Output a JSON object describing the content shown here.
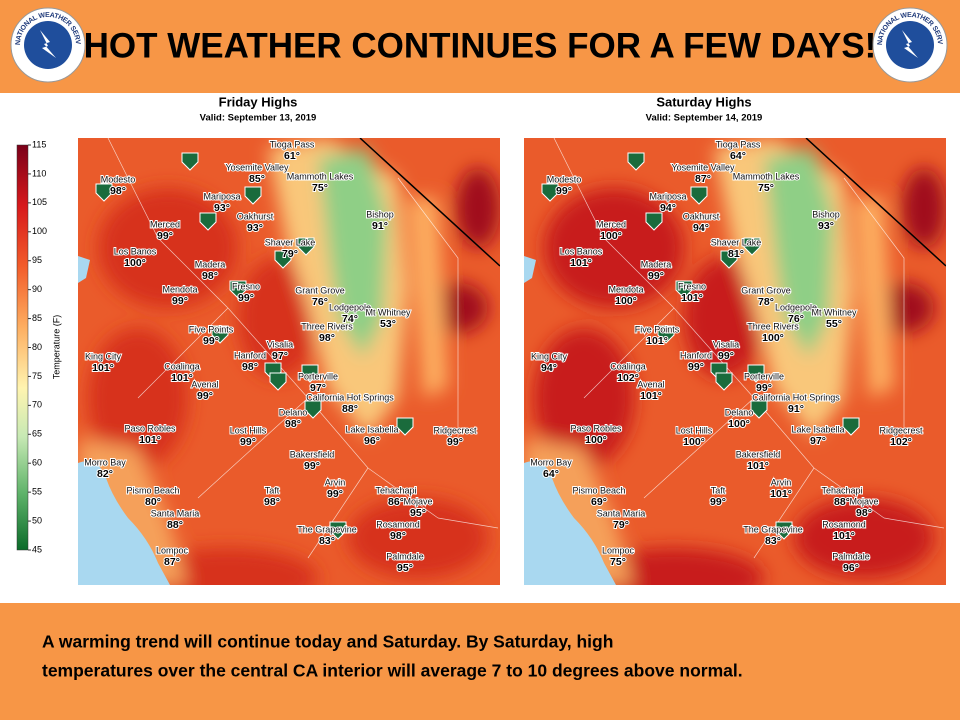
{
  "header": {
    "title": "HOT WEATHER CONTINUES FOR A FEW DAYS!",
    "logo_text": "NATIONAL WEATHER SERVICE"
  },
  "colorbar": {
    "label": "Temperature (F)",
    "ticks": [
      "115",
      "110",
      "105",
      "100",
      "95",
      "90",
      "85",
      "80",
      "75",
      "70",
      "65",
      "60",
      "55",
      "50",
      "45"
    ]
  },
  "maps": [
    {
      "title": "Friday Highs",
      "valid": "Valid: September 13, 2019",
      "cities": [
        {
          "name": "Tioga Pass",
          "temp": "61°"
        },
        {
          "name": "Modesto",
          "temp": "98°"
        },
        {
          "name": "Yosemite Valley",
          "temp": "85°"
        },
        {
          "name": "Mammoth Lakes",
          "temp": "75°"
        },
        {
          "name": "Mariposa",
          "temp": "93°"
        },
        {
          "name": "Merced",
          "temp": "99°"
        },
        {
          "name": "Oakhurst",
          "temp": "93°"
        },
        {
          "name": "Bishop",
          "temp": "91°"
        },
        {
          "name": "Shaver Lake",
          "temp": "79°"
        },
        {
          "name": "Los Banos",
          "temp": "100°"
        },
        {
          "name": "Madera",
          "temp": "98°"
        },
        {
          "name": "Mendota",
          "temp": "99°"
        },
        {
          "name": "Fresno",
          "temp": "99°"
        },
        {
          "name": "Grant Grove",
          "temp": "76°"
        },
        {
          "name": "Lodgepole",
          "temp": "74°"
        },
        {
          "name": "Mt Whitney",
          "temp": "53°"
        },
        {
          "name": "Three Rivers",
          "temp": "98°"
        },
        {
          "name": "Five Points",
          "temp": "99°"
        },
        {
          "name": "Visalia",
          "temp": "97°"
        },
        {
          "name": "King City",
          "temp": "101°"
        },
        {
          "name": "Coalinga",
          "temp": "101°"
        },
        {
          "name": "Hanford",
          "temp": "98°"
        },
        {
          "name": "Porterville",
          "temp": "97°"
        },
        {
          "name": "Avenal",
          "temp": "99°"
        },
        {
          "name": "California Hot Springs",
          "temp": "88°"
        },
        {
          "name": "Delano",
          "temp": "98°"
        },
        {
          "name": "Paso Robles",
          "temp": "101°"
        },
        {
          "name": "Lost Hills",
          "temp": "99°"
        },
        {
          "name": "Lake Isabella",
          "temp": "96°"
        },
        {
          "name": "Ridgecrest",
          "temp": "99°"
        },
        {
          "name": "Bakersfield",
          "temp": "99°"
        },
        {
          "name": "Morro Bay",
          "temp": "82°"
        },
        {
          "name": "Pismo Beach",
          "temp": "80°"
        },
        {
          "name": "Arvin",
          "temp": "99°"
        },
        {
          "name": "Taft",
          "temp": "98°"
        },
        {
          "name": "Tehachapi",
          "temp": "86°"
        },
        {
          "name": "Mojave",
          "temp": "95°"
        },
        {
          "name": "Santa Maria",
          "temp": "88°"
        },
        {
          "name": "Rosamond",
          "temp": "98°"
        },
        {
          "name": "The Grapevine",
          "temp": "83°"
        },
        {
          "name": "Lompoc",
          "temp": "87°"
        },
        {
          "name": "Palmdale",
          "temp": "95°"
        }
      ]
    },
    {
      "title": "Saturday Highs",
      "valid": "Valid: September 14, 2019",
      "cities": [
        {
          "name": "Tioga Pass",
          "temp": "64°"
        },
        {
          "name": "Modesto",
          "temp": "99°"
        },
        {
          "name": "Yosemite Valley",
          "temp": "87°"
        },
        {
          "name": "Mammoth Lakes",
          "temp": "75°"
        },
        {
          "name": "Mariposa",
          "temp": "94°"
        },
        {
          "name": "Merced",
          "temp": "100°"
        },
        {
          "name": "Oakhurst",
          "temp": "94°"
        },
        {
          "name": "Bishop",
          "temp": "93°"
        },
        {
          "name": "Shaver Lake",
          "temp": "81°"
        },
        {
          "name": "Los Banos",
          "temp": "101°"
        },
        {
          "name": "Madera",
          "temp": "99°"
        },
        {
          "name": "Mendota",
          "temp": "100°"
        },
        {
          "name": "Fresno",
          "temp": "101°"
        },
        {
          "name": "Grant Grove",
          "temp": "78°"
        },
        {
          "name": "Lodgepole",
          "temp": "76°"
        },
        {
          "name": "Mt Whitney",
          "temp": "55°"
        },
        {
          "name": "Three Rivers",
          "temp": "100°"
        },
        {
          "name": "Five Points",
          "temp": "101°"
        },
        {
          "name": "Visalia",
          "temp": "99°"
        },
        {
          "name": "King City",
          "temp": "94°"
        },
        {
          "name": "Coalinga",
          "temp": "102°"
        },
        {
          "name": "Hanford",
          "temp": "99°"
        },
        {
          "name": "Porterville",
          "temp": "99°"
        },
        {
          "name": "Avenal",
          "temp": "101°"
        },
        {
          "name": "California Hot Springs",
          "temp": "91°"
        },
        {
          "name": "Delano",
          "temp": "100°"
        },
        {
          "name": "Paso Robles",
          "temp": "100°"
        },
        {
          "name": "Lost Hills",
          "temp": "100°"
        },
        {
          "name": "Lake Isabella",
          "temp": "97°"
        },
        {
          "name": "Ridgecrest",
          "temp": "102°"
        },
        {
          "name": "Bakersfield",
          "temp": "101°"
        },
        {
          "name": "Morro Bay",
          "temp": "64°"
        },
        {
          "name": "Pismo Beach",
          "temp": "69°"
        },
        {
          "name": "Arvin",
          "temp": "101°"
        },
        {
          "name": "Taft",
          "temp": "99°"
        },
        {
          "name": "Tehachapi",
          "temp": "88°"
        },
        {
          "name": "Mojave",
          "temp": "98°"
        },
        {
          "name": "Santa Maria",
          "temp": "79°"
        },
        {
          "name": "Rosamond",
          "temp": "101°"
        },
        {
          "name": "The Grapevine",
          "temp": "83°"
        },
        {
          "name": "Lompoc",
          "temp": "75°"
        },
        {
          "name": "Palmdale",
          "temp": "96°"
        }
      ]
    }
  ],
  "footer": {
    "lines": [
      "A warming trend will continue today and Saturday. By Saturday, high",
      "temperatures over the central CA interior will average 7 to 10 degrees above normal."
    ]
  }
}
